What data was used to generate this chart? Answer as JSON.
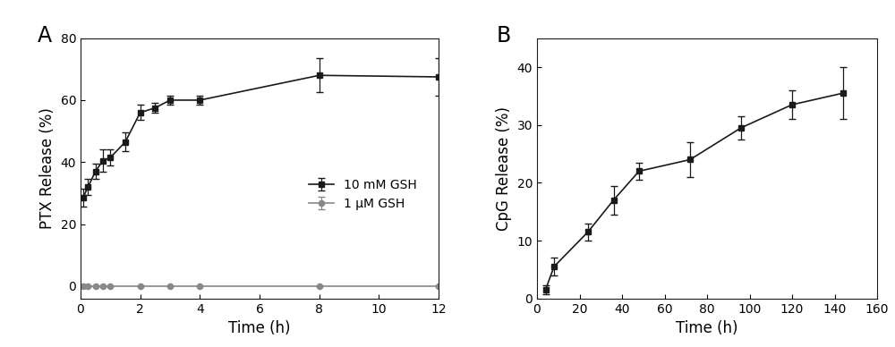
{
  "panel_A": {
    "label": "A",
    "series_10mM": {
      "x": [
        0.083,
        0.25,
        0.5,
        0.75,
        1.0,
        1.5,
        2.0,
        2.5,
        3.0,
        4.0,
        8.0,
        12.0
      ],
      "y": [
        28.5,
        32.0,
        37.0,
        40.5,
        41.5,
        46.5,
        56.0,
        57.5,
        60.0,
        60.0,
        68.0,
        67.5
      ],
      "yerr": [
        3.0,
        2.5,
        2.5,
        3.5,
        2.5,
        3.0,
        2.5,
        1.5,
        1.5,
        1.5,
        5.5,
        6.0
      ],
      "label": "10 mM GSH",
      "color": "#1a1a1a",
      "marker": "s"
    },
    "series_1uM": {
      "x": [
        0.083,
        0.25,
        0.5,
        0.75,
        1.0,
        2.0,
        3.0,
        4.0,
        8.0,
        12.0
      ],
      "y": [
        0.0,
        0.0,
        0.0,
        0.0,
        0.0,
        0.0,
        0.0,
        0.0,
        0.0,
        0.0
      ],
      "yerr": [
        0.0,
        0.0,
        0.0,
        0.0,
        0.0,
        0.0,
        0.0,
        0.0,
        0.0,
        0.0
      ],
      "label": "1 μM GSH",
      "color": "#888888",
      "marker": "o"
    },
    "xlabel": "Time (h)",
    "ylabel": "PTX Release (%)",
    "xlim": [
      0,
      12
    ],
    "ylim": [
      -4,
      80
    ],
    "xticks": [
      0,
      2,
      4,
      6,
      8,
      10,
      12
    ],
    "yticks": [
      0,
      20,
      40,
      60,
      80
    ]
  },
  "panel_B": {
    "label": "B",
    "series": {
      "x": [
        4,
        8,
        24,
        36,
        48,
        72,
        96,
        120,
        144
      ],
      "y": [
        1.5,
        5.5,
        11.5,
        17.0,
        22.0,
        24.0,
        29.5,
        33.5,
        35.5
      ],
      "yerr": [
        0.8,
        1.5,
        1.5,
        2.5,
        1.5,
        3.0,
        2.0,
        2.5,
        4.5
      ],
      "color": "#1a1a1a",
      "marker": "s"
    },
    "xlabel": "Time (h)",
    "ylabel": "CpG Release (%)",
    "xlim": [
      0,
      160
    ],
    "ylim": [
      0,
      45
    ],
    "xticks": [
      0,
      20,
      40,
      60,
      80,
      100,
      120,
      140,
      160
    ],
    "yticks": [
      0,
      10,
      20,
      30,
      40
    ]
  },
  "background_color": "#ffffff",
  "line_color": "#1a1a1a",
  "panel_label_fontsize": 17,
  "axis_label_fontsize": 12,
  "tick_label_fontsize": 10,
  "legend_fontsize": 10
}
